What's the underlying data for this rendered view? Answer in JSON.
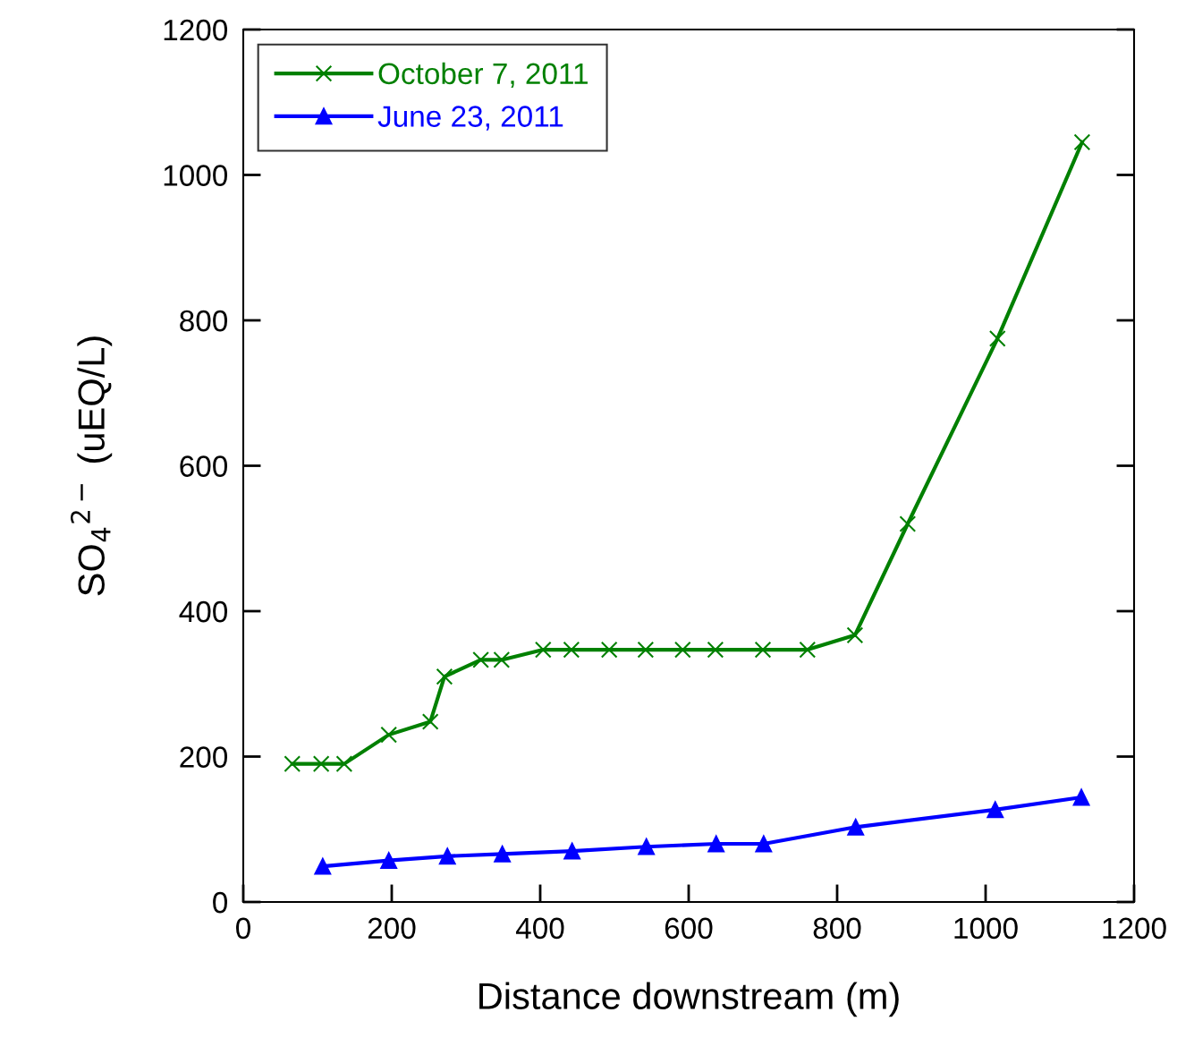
{
  "chart_data": {
    "type": "line",
    "xlabel": "Distance downstream (m)",
    "ylabel": "SO$_{4}$$^{2−}$ (uEQ/L)",
    "xlim": [
      0,
      1200
    ],
    "xticks": [
      0,
      200,
      400,
      600,
      800,
      1000,
      1200
    ],
    "ylim": [
      0,
      1200
    ],
    "yticks": [
      0,
      200,
      400,
      600,
      800,
      1000,
      1200
    ],
    "grid": false,
    "legend": "top left",
    "series": [
      {
        "name": "October 7, 2011",
        "color": "#008000",
        "marker": "cross",
        "x": [
          66,
          105,
          136,
          196,
          252,
          271,
          320,
          348,
          404,
          442,
          493,
          542,
          592,
          636,
          700,
          760,
          824,
          895,
          1016,
          1130
        ],
        "values": [
          190,
          190,
          190,
          230,
          248,
          310,
          333,
          333,
          347,
          347,
          347,
          347,
          347,
          347,
          347,
          347,
          367,
          520,
          775,
          1045
        ]
      },
      {
        "name": "June 23, 2011",
        "color": "#0000ff",
        "marker": "triangle",
        "x": [
          107,
          196,
          275,
          349,
          443,
          543,
          637,
          701,
          825,
          1013,
          1129
        ],
        "values": [
          49,
          57,
          63,
          66,
          70,
          76,
          80,
          80,
          103,
          127,
          144
        ]
      }
    ]
  }
}
